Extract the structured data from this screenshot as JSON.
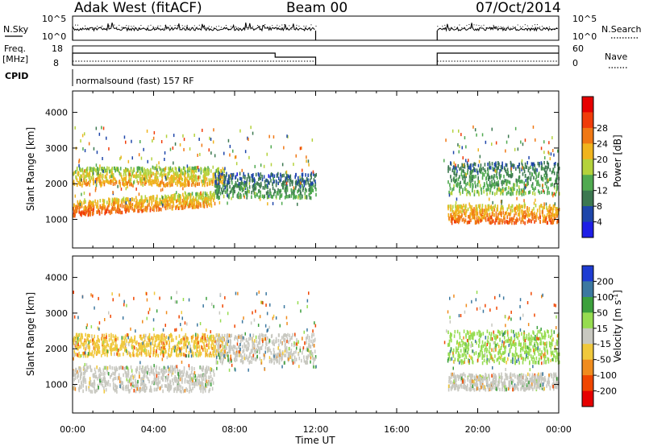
{
  "header": {
    "radar": "Adak West (fitACF)",
    "beam": "Beam 00",
    "date": "07/Oct/2014"
  },
  "panels": {
    "nsky": {
      "label": "N.Sky",
      "ticks": [
        "10^5",
        "10^0"
      ]
    },
    "nsearch": {
      "label": "N.Search",
      "ticks": [
        "10^5",
        "10^0"
      ]
    },
    "freq": {
      "label_line1": "Freq.",
      "label_line2": "[MHz]",
      "ticks": [
        "18",
        "8"
      ]
    },
    "nave": {
      "label": "Nave",
      "ticks": [
        "60",
        "0"
      ]
    },
    "cpid": {
      "label": "CPID",
      "text": "normalsound (fast) 157 RF"
    }
  },
  "colors": {
    "power": [
      "#1e1ee6",
      "#1e46aa",
      "#3c7850",
      "#50aa50",
      "#b4d23c",
      "#f0b41e",
      "#f07814",
      "#f03c0a",
      "#e60000"
    ],
    "velocity": [
      "#e60000",
      "#f04600",
      "#f08c1e",
      "#f0c83c",
      "#c8c8c0",
      "#96dc50",
      "#3ca03c",
      "#3c78a0",
      "#1e3cd2"
    ]
  },
  "chart_data": [
    {
      "type": "heatmap",
      "title": "Power",
      "xlabel": "Time UT",
      "ylabel": "Slant Range [km]",
      "x_ticks": [
        "00:00",
        "04:00",
        "08:00",
        "12:00",
        "16:00",
        "20:00",
        "00:00"
      ],
      "y_ticks": [
        "1000",
        "2000",
        "3000",
        "4000"
      ],
      "ylim": [
        200,
        4600
      ],
      "colorbar": {
        "label": "Power [dB]",
        "ticks": [
          "4",
          "8",
          "12",
          "16",
          "20",
          "24",
          "28"
        ]
      },
      "data_gaps_ut": [
        [
          12.0,
          18.0
        ]
      ],
      "echo_bands": [
        {
          "t_start": 0.0,
          "t_end": 7.0,
          "range_start_km": 1100,
          "range_end_km": 1500,
          "power_db": 30
        },
        {
          "t_start": 0.0,
          "t_end": 7.5,
          "range_start_km": 1950,
          "range_end_km": 2450,
          "power_db": 24
        },
        {
          "t_start": 7.0,
          "t_end": 12.0,
          "range_start_km": 1600,
          "range_end_km": 2300,
          "power_db": 14
        },
        {
          "t_start": 18.5,
          "t_end": 24.0,
          "range_start_km": 900,
          "range_end_km": 1400,
          "power_db": 28
        },
        {
          "t_start": 18.5,
          "t_end": 24.0,
          "range_start_km": 1700,
          "range_end_km": 2600,
          "power_db": 16
        }
      ]
    },
    {
      "type": "heatmap",
      "title": "Velocity",
      "xlabel": "Time UT",
      "ylabel": "Slant Range [km]",
      "x_ticks": [
        "00:00",
        "04:00",
        "08:00",
        "12:00",
        "16:00",
        "20:00",
        "00:00"
      ],
      "y_ticks": [
        "1000",
        "2000",
        "3000",
        "4000"
      ],
      "ylim": [
        200,
        4600
      ],
      "colorbar": {
        "label": "Velocity [m s^-1]",
        "ticks": [
          "200",
          "100",
          "50",
          "15",
          "-15",
          "-50",
          "-100",
          "-200"
        ]
      },
      "data_gaps_ut": [
        [
          12.0,
          18.0
        ]
      ],
      "echo_bands": [
        {
          "t_start": 0.0,
          "t_end": 7.0,
          "range_start_km": 800,
          "range_end_km": 1500,
          "velocity_ms": 0
        },
        {
          "t_start": 0.0,
          "t_end": 7.5,
          "range_start_km": 1800,
          "range_end_km": 2400,
          "velocity_ms": -40
        },
        {
          "t_start": 7.0,
          "t_end": 12.0,
          "range_start_km": 1600,
          "range_end_km": 2400,
          "velocity_ms": 0
        },
        {
          "t_start": 18.5,
          "t_end": 24.0,
          "range_start_km": 850,
          "range_end_km": 1300,
          "velocity_ms": 0
        },
        {
          "t_start": 18.5,
          "t_end": 24.0,
          "range_start_km": 1600,
          "range_end_km": 2500,
          "velocity_ms": 30
        }
      ]
    }
  ]
}
